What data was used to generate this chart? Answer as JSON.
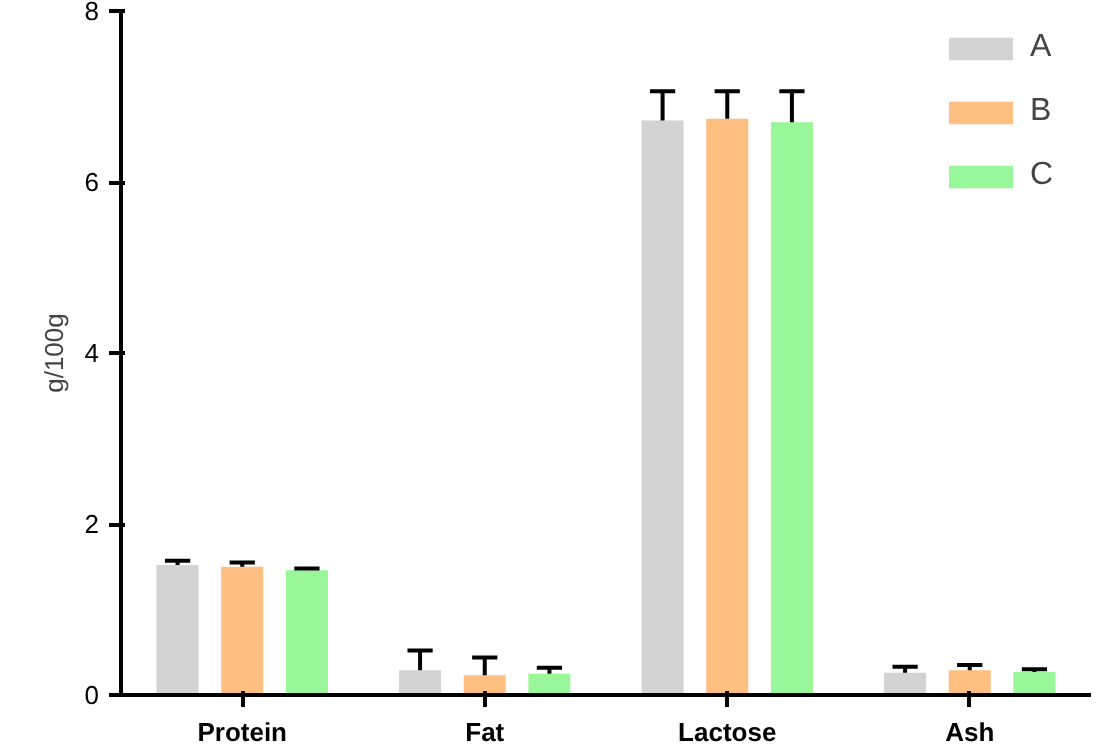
{
  "chart_data": {
    "type": "bar",
    "ylabel": "g/100g",
    "categories": [
      "Protein",
      "Fat",
      "Lactose",
      "Ash"
    ],
    "series": [
      {
        "name": "A",
        "color": "#d3d3d3",
        "values": [
          1.52,
          0.29,
          6.72,
          0.26
        ],
        "errors": [
          [
            1.52,
            1.57
          ],
          [
            0.29,
            0.52
          ],
          [
            6.72,
            7.06
          ],
          [
            0.26,
            0.33
          ]
        ]
      },
      {
        "name": "B",
        "color": "#ffbf80",
        "values": [
          1.5,
          0.23,
          6.74,
          0.29
        ],
        "errors": [
          [
            1.5,
            1.55
          ],
          [
            0.23,
            0.44
          ],
          [
            6.74,
            7.06
          ],
          [
            0.29,
            0.35
          ]
        ]
      },
      {
        "name": "C",
        "color": "#99f799",
        "values": [
          1.46,
          0.25,
          6.7,
          0.27
        ],
        "errors": [
          [
            1.46,
            1.48
          ],
          [
            0.25,
            0.32
          ],
          [
            6.7,
            7.06
          ],
          [
            0.27,
            0.3
          ]
        ]
      }
    ],
    "ylim": [
      0,
      8
    ],
    "yticks": [
      0,
      2,
      4,
      6,
      8
    ],
    "grid": false,
    "legend": "top right"
  }
}
